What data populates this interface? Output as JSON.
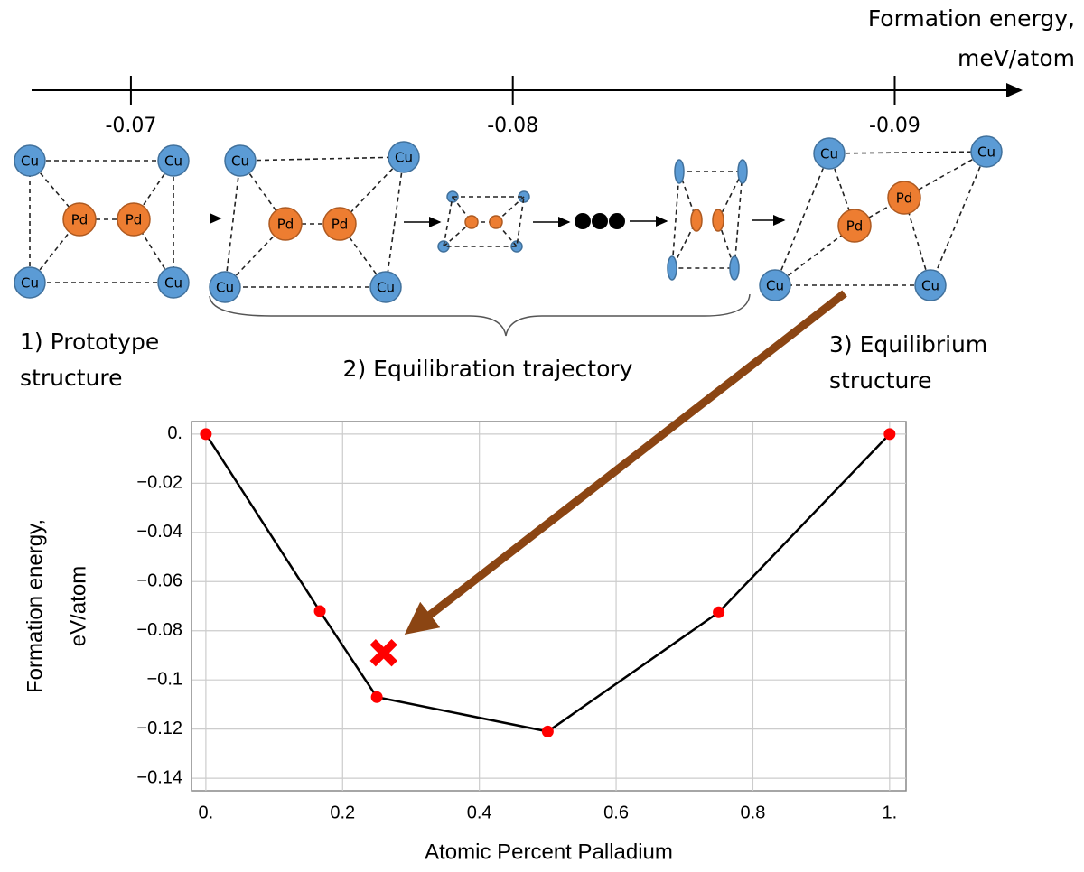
{
  "chart_data": [
    {
      "type": "number-line",
      "title_lines": [
        "Formation energy,",
        "meV/atom"
      ],
      "xlim": [
        -0.0674,
        -0.0933
      ],
      "xticks": [
        -0.07,
        -0.08,
        -0.09
      ]
    },
    {
      "type": "line",
      "x_label": "Atomic Percent Palladium",
      "y_label_lines": [
        "Formation energy,",
        "eV/atom"
      ],
      "x": [
        0,
        0.1667,
        0.25,
        0.5,
        0.75,
        1
      ],
      "values": [
        0,
        -0.072,
        -0.107,
        -0.121,
        -0.0725,
        0
      ],
      "line_color": "#000000",
      "marker_color": "#ff0000",
      "highlight": {
        "x": 0.26,
        "y": -0.089,
        "color": "#ff0000"
      },
      "xlim": [
        -0.021,
        1.024
      ],
      "ylim": [
        0.0051,
        -0.1451
      ],
      "xticks": [
        {
          "value": 0,
          "label": "0."
        },
        0.2,
        0.4,
        0.6,
        0.8,
        {
          "value": 1,
          "label": "1."
        }
      ],
      "yticks": [
        {
          "value": 0,
          "label": "0."
        },
        {
          "value": -0.02,
          "label": "−0.02"
        },
        {
          "value": -0.04,
          "label": "−0.04"
        },
        {
          "value": -0.06,
          "label": "−0.06"
        },
        {
          "value": -0.08,
          "label": "−0.08"
        },
        {
          "value": -0.1,
          "label": "−0.1"
        },
        {
          "value": -0.12,
          "label": "−0.12"
        },
        {
          "value": -0.14,
          "label": "−0.14"
        }
      ],
      "grid": true
    }
  ],
  "structures": [
    {
      "atoms": [
        "Cu",
        "Cu",
        "Cu",
        "Cu",
        "Pd",
        "Pd"
      ]
    },
    {
      "atoms": [
        "Cu",
        "Cu",
        "Cu",
        "Cu",
        "Pd",
        "Pd"
      ]
    },
    {
      "atoms": [
        "Cu",
        "Cu",
        "Cu",
        "Cu",
        "Pd",
        "Pd"
      ]
    }
  ],
  "stages": [
    {
      "lines": [
        "1) Prototype",
        "structure"
      ]
    },
    {
      "lines": [
        "2) Equilibration trajectory"
      ]
    },
    {
      "lines": [
        "3) Equilibrium",
        "structure"
      ]
    }
  ]
}
